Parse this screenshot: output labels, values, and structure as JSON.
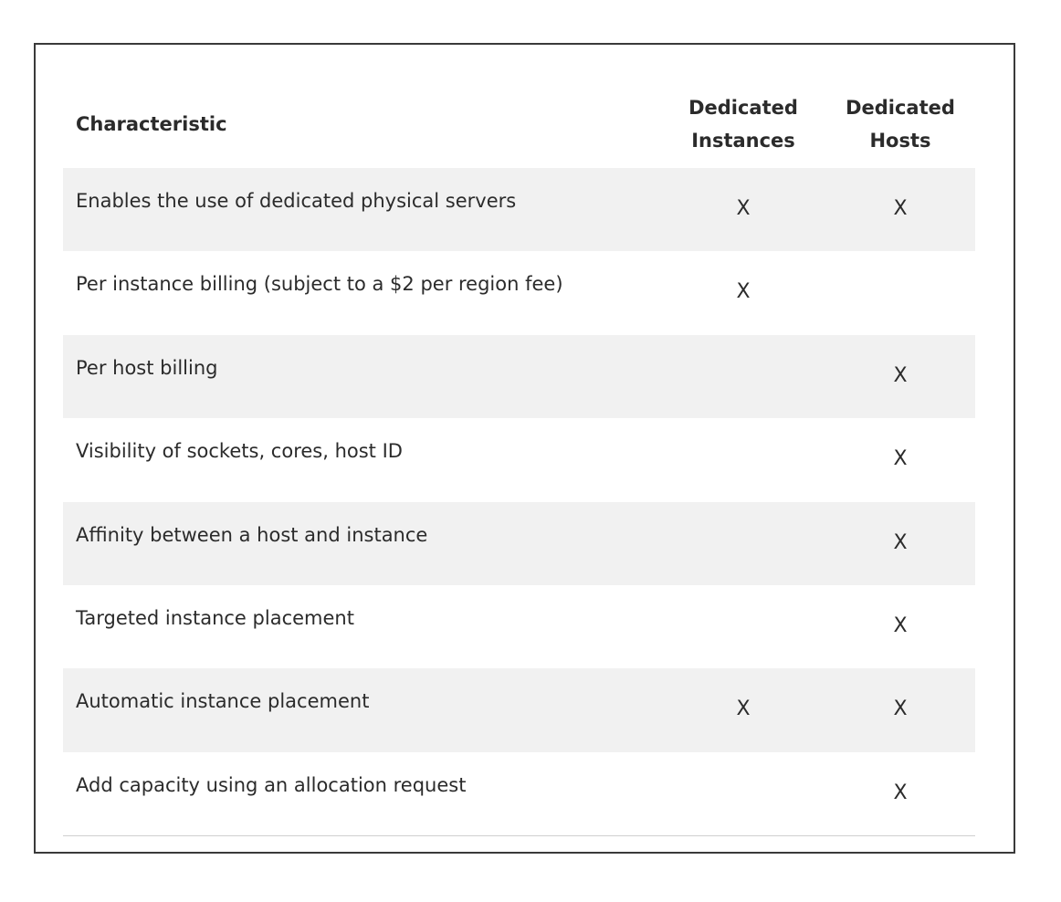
{
  "table": {
    "headers": {
      "characteristic": "Characteristic",
      "dedicated_instances": "Dedicated\nInstances",
      "dedicated_hosts": "Dedicated\nHosts"
    },
    "rows": [
      {
        "characteristic": "Enables the use of dedicated physical servers",
        "instances": "X",
        "hosts": "X"
      },
      {
        "characteristic": "Per instance billing (subject to a $2 per region fee)",
        "instances": "X",
        "hosts": ""
      },
      {
        "characteristic": "Per host billing",
        "instances": "",
        "hosts": "X"
      },
      {
        "characteristic": "Visibility of sockets, cores, host ID",
        "instances": "",
        "hosts": "X"
      },
      {
        "characteristic": "Affinity between a host and instance",
        "instances": "",
        "hosts": "X"
      },
      {
        "characteristic": "Targeted instance placement",
        "instances": "",
        "hosts": "X"
      },
      {
        "characteristic": "Automatic instance placement",
        "instances": "X",
        "hosts": "X"
      },
      {
        "characteristic": "Add capacity using an allocation request",
        "instances": "",
        "hosts": "X"
      }
    ]
  }
}
